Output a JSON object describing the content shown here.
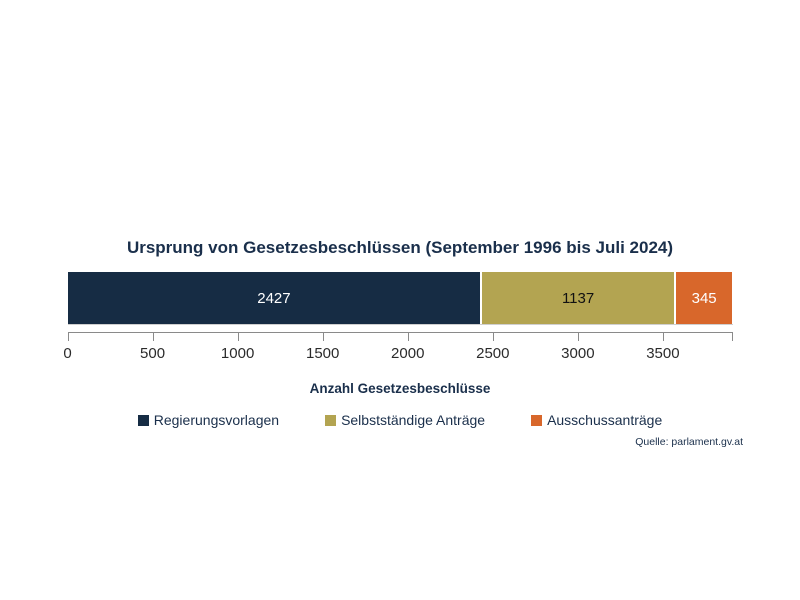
{
  "chart_data": {
    "type": "bar",
    "variant": "horizontal-stacked",
    "title": "Ursprung von Gesetzesbeschlüssen (September 1996 bis Juli 2024)",
    "xlabel": "Anzahl Gesetzesbeschlüsse",
    "x_ticks": [
      0,
      500,
      1000,
      1500,
      2000,
      2500,
      3000,
      3500
    ],
    "x_max": 3909,
    "grid": false,
    "legend_position": "bottom",
    "series": [
      {
        "name": "Regierungsvorlagen",
        "value": 2427,
        "color": "#162c44",
        "label_color": "#ffffff"
      },
      {
        "name": "Selbstständige Anträge",
        "value": 1137,
        "color": "#b3a451",
        "label_color": "#111111"
      },
      {
        "name": "Ausschussanträge",
        "value": 345,
        "color": "#d8672b",
        "label_color": "#ffffff"
      }
    ],
    "source": "Quelle: parlament.gv.at"
  },
  "colors": {
    "title_text": "#1a2f4b",
    "tick_text": "#2b2b2b",
    "axis_line": "#8a8a8a",
    "background": "#ffffff"
  }
}
